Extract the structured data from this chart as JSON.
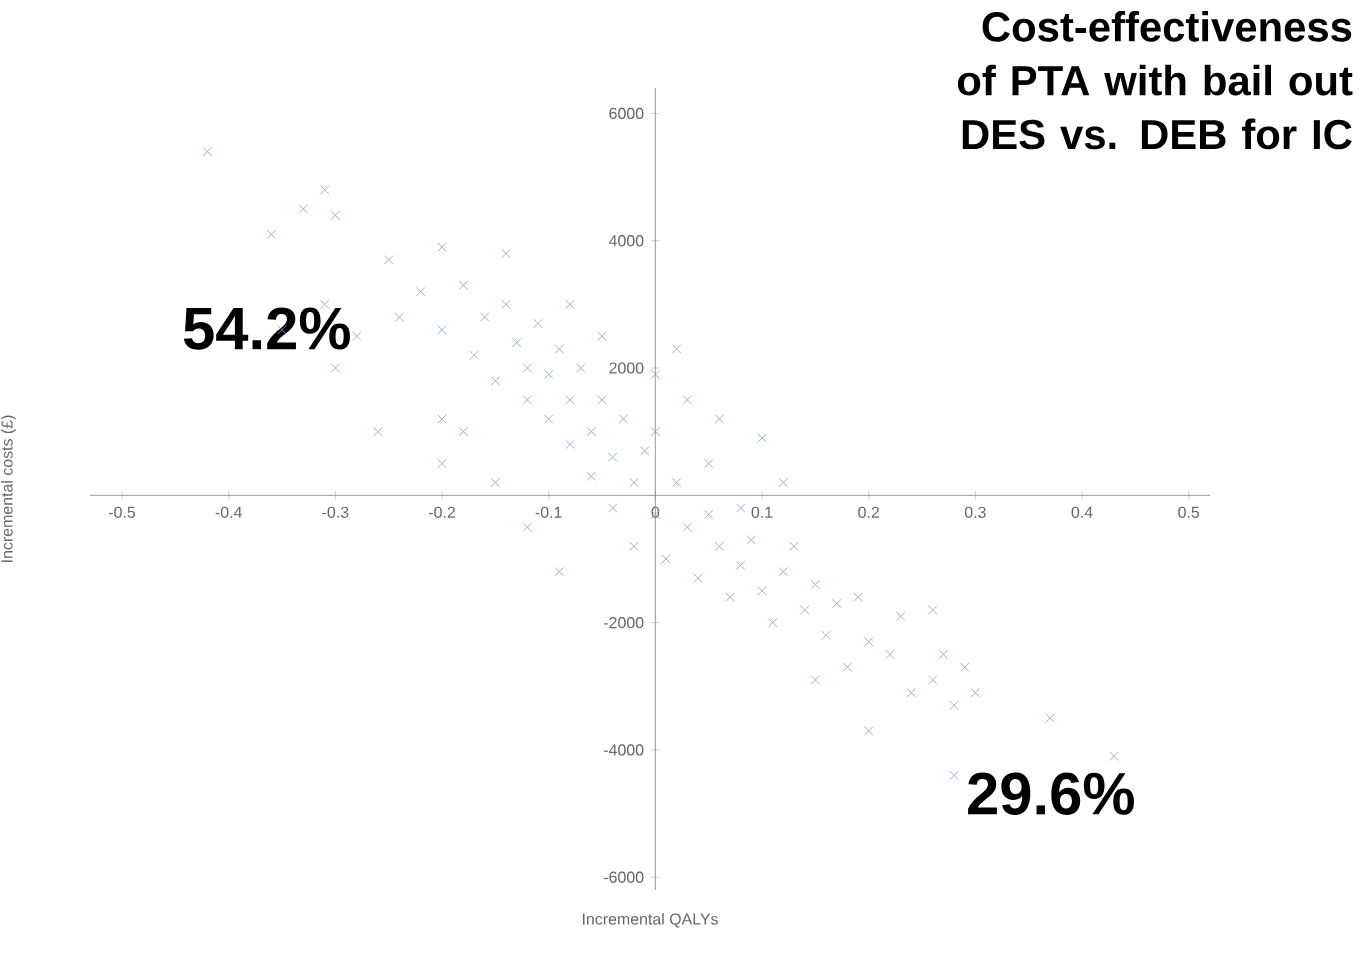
{
  "chart_data": {
    "type": "scatter",
    "title": "Cost-effectiveness of PTA with bail out DES vs. DEB for IC",
    "xlabel": "Incremental QALYs",
    "ylabel": "Incremental costs (£)",
    "annotations": [
      "54.2%",
      "29.6%"
    ],
    "xlim": [
      -0.53,
      0.52
    ],
    "ylim": [
      -6200,
      6400
    ],
    "xticks": [
      -0.5,
      -0.4,
      -0.3,
      -0.2,
      -0.1,
      0,
      0.1,
      0.2,
      0.3,
      0.4,
      0.5
    ],
    "yticks": [
      -6000,
      -4000,
      -2000,
      2000,
      4000,
      6000
    ],
    "marker": "cross",
    "grid": false,
    "series": [
      {
        "color": "#7f9fd6",
        "x": [
          -0.42,
          -0.31,
          -0.33,
          -0.3,
          -0.36,
          -0.2,
          -0.14,
          -0.35,
          -0.31,
          -0.28,
          -0.3,
          -0.26,
          -0.2,
          -0.18,
          -0.24,
          -0.22,
          -0.2,
          -0.18,
          -0.17,
          -0.16,
          -0.15,
          -0.14,
          -0.13,
          -0.12,
          -0.12,
          -0.11,
          -0.1,
          -0.1,
          -0.09,
          -0.08,
          -0.08,
          -0.07,
          -0.06,
          -0.06,
          -0.05,
          -0.04,
          -0.04,
          -0.03,
          -0.02,
          -0.02,
          -0.01,
          0.0,
          0.0,
          0.01,
          0.02,
          0.03,
          0.03,
          0.04,
          0.05,
          0.05,
          0.06,
          0.07,
          0.08,
          0.08,
          0.09,
          0.1,
          0.1,
          0.11,
          0.12,
          0.12,
          0.13,
          0.14,
          0.15,
          0.15,
          0.16,
          0.17,
          0.18,
          0.19,
          0.2,
          0.2,
          0.22,
          0.23,
          0.24,
          0.26,
          0.26,
          0.27,
          0.28,
          0.28,
          0.29,
          0.3,
          0.37,
          0.43,
          -0.09,
          -0.12,
          -0.15,
          -0.2,
          0.0,
          0.02,
          -0.05,
          -0.08,
          0.06,
          -0.25
        ],
        "values": [
          5400,
          4800,
          4500,
          4400,
          4100,
          3900,
          3800,
          2600,
          3000,
          2500,
          2000,
          1000,
          1200,
          1000,
          2800,
          3200,
          2600,
          3300,
          2200,
          2800,
          1800,
          3000,
          2400,
          1500,
          2000,
          2700,
          1200,
          1900,
          2300,
          800,
          1500,
          2000,
          1000,
          300,
          1500,
          600,
          -200,
          1200,
          200,
          -800,
          700,
          -300,
          1000,
          -1000,
          200,
          -500,
          1500,
          -1300,
          -300,
          500,
          -800,
          -1600,
          -200,
          -1100,
          -700,
          -1500,
          900,
          -2000,
          200,
          -1200,
          -800,
          -1800,
          -1400,
          -2900,
          -2200,
          -1700,
          -2700,
          -1600,
          -2300,
          -3700,
          -2500,
          -1900,
          -3100,
          -2900,
          -1800,
          -2500,
          -4400,
          -3300,
          -2700,
          -3100,
          -3500,
          -4100,
          -1200,
          -500,
          200,
          500,
          1900,
          2300,
          2500,
          3000,
          1200,
          3700
        ]
      }
    ]
  }
}
